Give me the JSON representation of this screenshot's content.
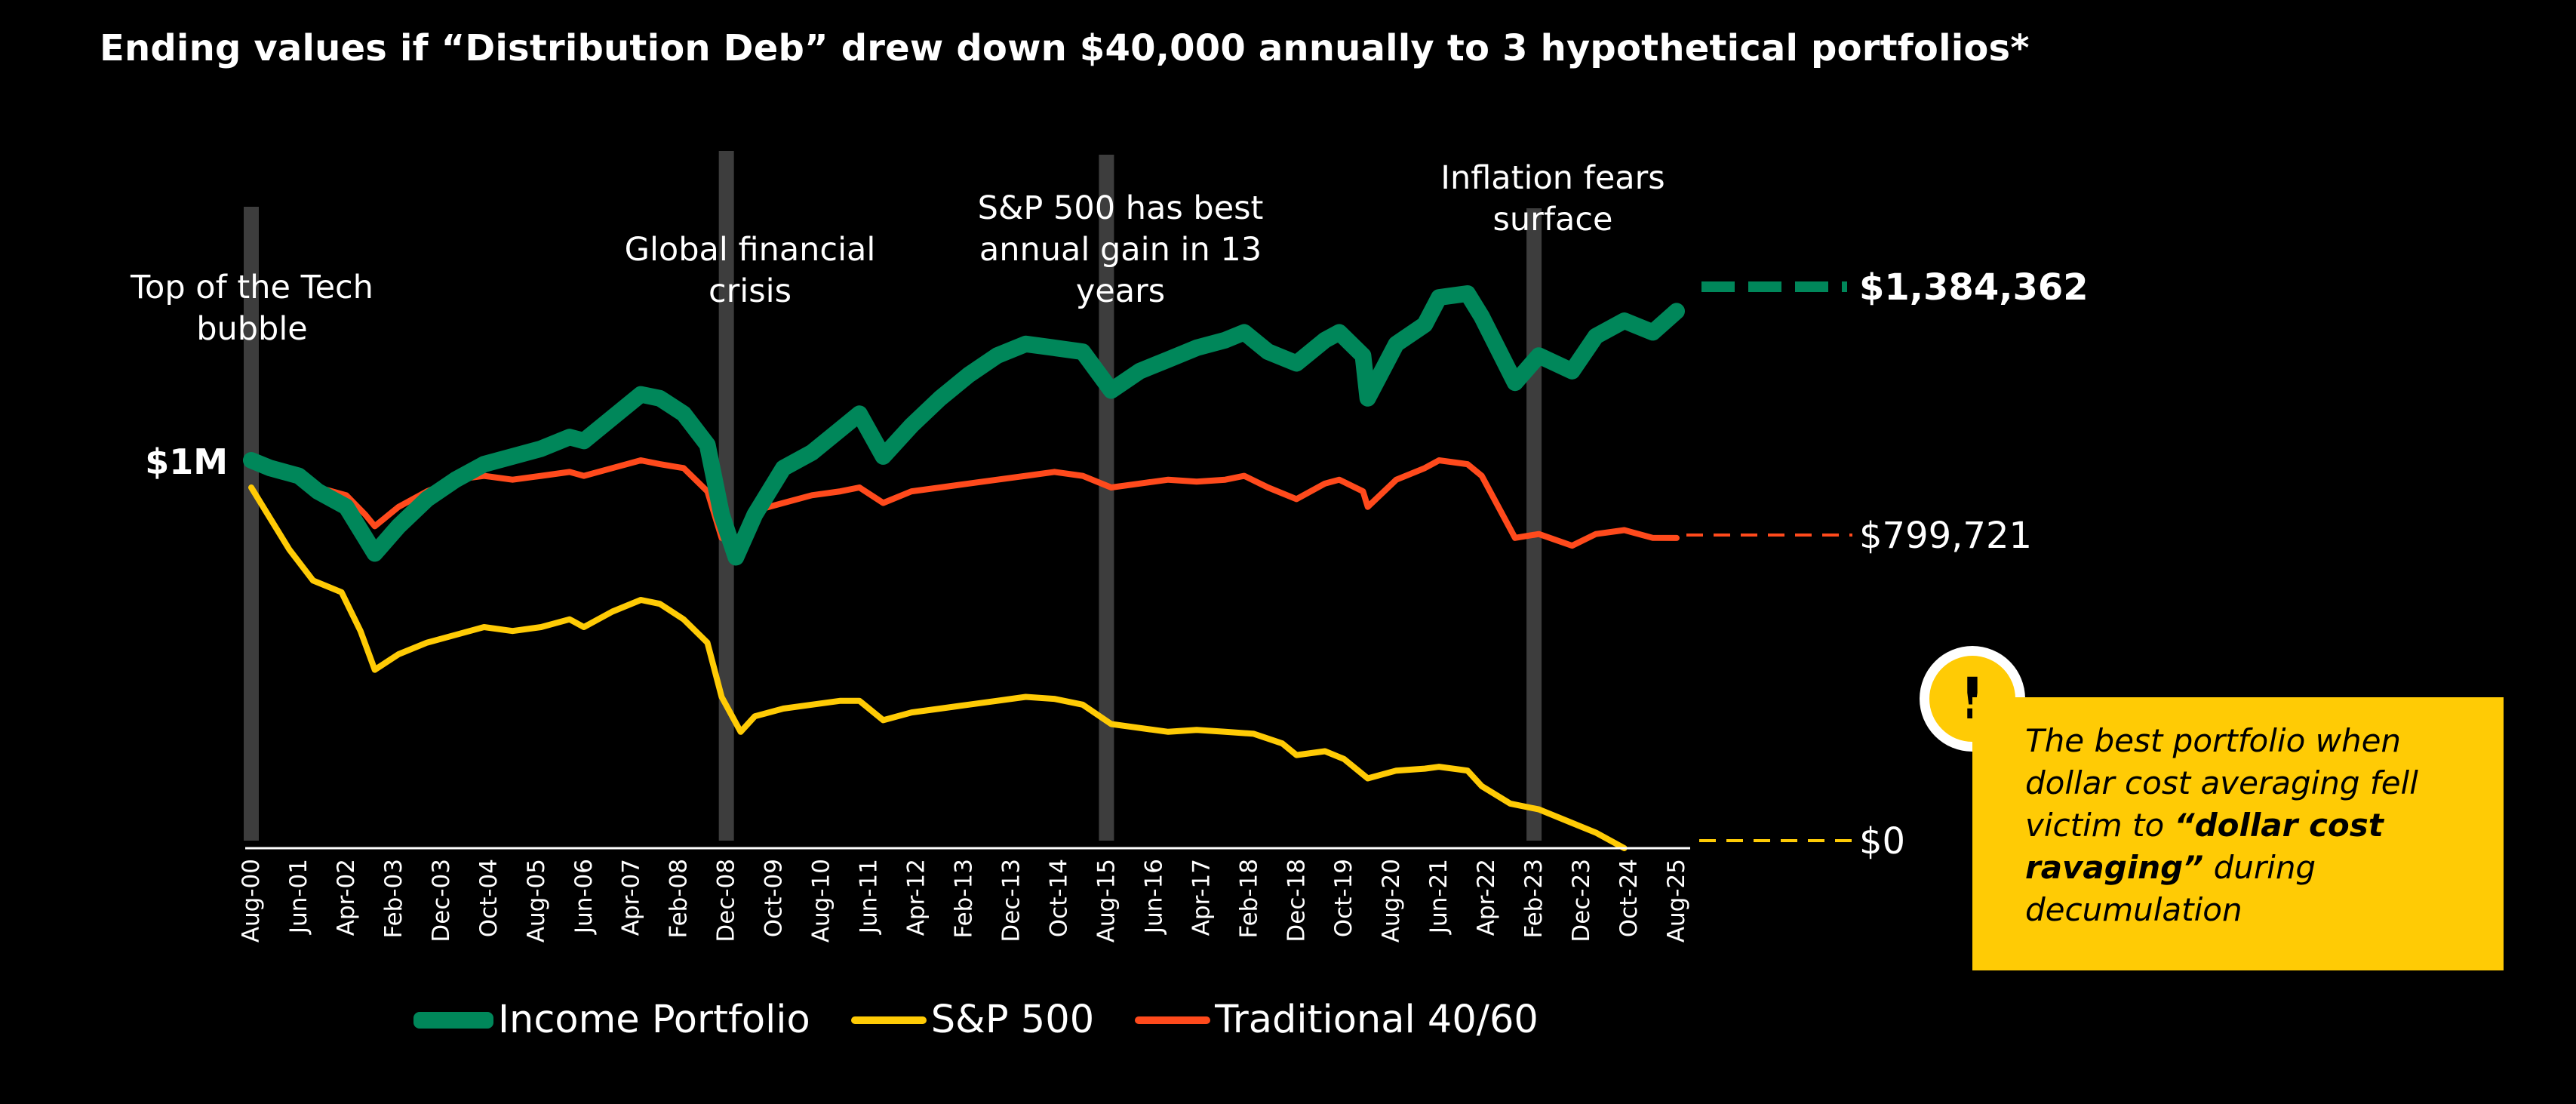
{
  "chart_data": {
    "type": "line",
    "title": "Ending values if “Distribution Deb” drew down $40,000 annually to 3 hypothetical portfolios*",
    "x_ticks": [
      "Aug-00",
      "Jun-01",
      "Apr-02",
      "Feb-03",
      "Dec-03",
      "Oct-04",
      "Aug-05",
      "Jun-06",
      "Apr-07",
      "Feb-08",
      "Dec-08",
      "Oct-09",
      "Aug-10",
      "Jun-11",
      "Apr-12",
      "Feb-13",
      "Dec-13",
      "Oct-14",
      "Aug-15",
      "Jun-16",
      "Apr-17",
      "Feb-18",
      "Dec-18",
      "Oct-19",
      "Aug-20",
      "Jun-21",
      "Apr-22",
      "Feb-23",
      "Dec-23",
      "Oct-24",
      "Aug-25"
    ],
    "y_label_1m": "$1M",
    "ylim": [
      0,
      1500000
    ],
    "series": [
      {
        "name": "Income Portfolio",
        "color": "#00875a",
        "end_label": "$1,384,362",
        "end_value": 1384362,
        "x": [
          "2000-08",
          "2000-12",
          "2001-06",
          "2001-10",
          "2002-04",
          "2002-08",
          "2002-10",
          "2003-03",
          "2003-09",
          "2004-03",
          "2004-09",
          "2005-03",
          "2005-09",
          "2006-03",
          "2006-06",
          "2006-12",
          "2007-06",
          "2007-10",
          "2008-03",
          "2008-08",
          "2008-11",
          "2009-02",
          "2009-06",
          "2009-12",
          "2010-06",
          "2010-12",
          "2011-04",
          "2011-09",
          "2012-03",
          "2012-09",
          "2013-03",
          "2013-09",
          "2014-03",
          "2014-09",
          "2015-03",
          "2015-09",
          "2016-03",
          "2016-09",
          "2017-03",
          "2017-09",
          "2018-01",
          "2018-06",
          "2018-12",
          "2019-06",
          "2019-09",
          "2020-02",
          "2020-03",
          "2020-09",
          "2021-03",
          "2021-06",
          "2021-12",
          "2022-03",
          "2022-10",
          "2023-03",
          "2023-10",
          "2024-03",
          "2024-09",
          "2025-03",
          "2025-08"
        ],
        "y": [
          1000000,
          980000,
          960000,
          920000,
          880000,
          800000,
          760000,
          830000,
          900000,
          950000,
          990000,
          1010000,
          1030000,
          1060000,
          1050000,
          1110000,
          1170000,
          1160000,
          1120000,
          1040000,
          860000,
          750000,
          860000,
          980000,
          1020000,
          1080000,
          1120000,
          1010000,
          1090000,
          1160000,
          1220000,
          1270000,
          1300000,
          1290000,
          1280000,
          1180000,
          1230000,
          1260000,
          1290000,
          1310000,
          1330000,
          1280000,
          1250000,
          1310000,
          1330000,
          1270000,
          1160000,
          1300000,
          1350000,
          1420000,
          1430000,
          1370000,
          1200000,
          1270000,
          1230000,
          1320000,
          1360000,
          1330000,
          1384362
        ]
      },
      {
        "name": "S&P 500",
        "color": "#ffcb05",
        "end_label": "$0",
        "end_value": 0,
        "x": [
          "2000-08",
          "2000-12",
          "2001-04",
          "2001-09",
          "2002-03",
          "2002-07",
          "2002-10",
          "2003-03",
          "2003-09",
          "2004-03",
          "2004-09",
          "2005-03",
          "2005-09",
          "2006-03",
          "2006-06",
          "2006-12",
          "2007-06",
          "2007-10",
          "2008-03",
          "2008-08",
          "2008-11",
          "2009-03",
          "2009-06",
          "2009-12",
          "2010-06",
          "2010-12",
          "2011-04",
          "2011-09",
          "2012-03",
          "2012-09",
          "2013-03",
          "2013-09",
          "2014-03",
          "2014-09",
          "2015-03",
          "2015-09",
          "2016-03",
          "2016-09",
          "2017-03",
          "2017-09",
          "2018-03",
          "2018-09",
          "2018-12",
          "2019-06",
          "2019-10",
          "2020-03",
          "2020-09",
          "2021-03",
          "2021-06",
          "2021-12",
          "2022-03",
          "2022-09",
          "2023-03",
          "2023-09",
          "2024-03",
          "2024-09"
        ],
        "y": [
          930000,
          850000,
          770000,
          690000,
          660000,
          560000,
          460000,
          500000,
          530000,
          550000,
          570000,
          560000,
          570000,
          590000,
          570000,
          610000,
          640000,
          630000,
          590000,
          530000,
          390000,
          300000,
          340000,
          360000,
          370000,
          380000,
          380000,
          330000,
          350000,
          360000,
          370000,
          380000,
          390000,
          385000,
          370000,
          320000,
          310000,
          300000,
          305000,
          300000,
          295000,
          270000,
          240000,
          250000,
          230000,
          180000,
          200000,
          205000,
          210000,
          200000,
          160000,
          115000,
          100000,
          70000,
          40000,
          0
        ]
      },
      {
        "name": "Traditional 40/60",
        "color": "#ff4a1c",
        "end_label": "$799,721",
        "end_value": 799721,
        "x": [
          "2000-08",
          "2000-12",
          "2001-06",
          "2001-10",
          "2002-04",
          "2002-08",
          "2002-10",
          "2003-03",
          "2003-09",
          "2004-03",
          "2004-09",
          "2005-03",
          "2005-09",
          "2006-03",
          "2006-06",
          "2006-12",
          "2007-06",
          "2007-10",
          "2008-03",
          "2008-08",
          "2008-11",
          "2009-02",
          "2009-06",
          "2009-12",
          "2010-06",
          "2010-12",
          "2011-04",
          "2011-09",
          "2012-03",
          "2012-09",
          "2013-03",
          "2013-09",
          "2014-03",
          "2014-09",
          "2015-03",
          "2015-09",
          "2016-03",
          "2016-09",
          "2017-03",
          "2017-09",
          "2018-01",
          "2018-06",
          "2018-12",
          "2019-06",
          "2019-09",
          "2020-02",
          "2020-03",
          "2020-09",
          "2021-03",
          "2021-06",
          "2021-12",
          "2022-03",
          "2022-10",
          "2023-03",
          "2023-10",
          "2024-03",
          "2024-09",
          "2025-03",
          "2025-08"
        ],
        "y": [
          1000000,
          980000,
          960000,
          930000,
          910000,
          860000,
          830000,
          880000,
          920000,
          950000,
          960000,
          950000,
          960000,
          970000,
          960000,
          980000,
          1000000,
          990000,
          980000,
          920000,
          800000,
          780000,
          870000,
          890000,
          910000,
          920000,
          930000,
          890000,
          920000,
          930000,
          940000,
          950000,
          960000,
          970000,
          960000,
          930000,
          940000,
          950000,
          945000,
          950000,
          960000,
          930000,
          900000,
          940000,
          950000,
          920000,
          880000,
          950000,
          980000,
          1000000,
          990000,
          960000,
          800000,
          810000,
          780000,
          810000,
          820000,
          800000,
          799721
        ]
      }
    ],
    "annotations": [
      {
        "date": "2000-08",
        "label": "Top of the Tech bubble"
      },
      {
        "date": "2008-12",
        "label": "Global financial crisis"
      },
      {
        "date": "2015-08",
        "label": "S&P 500 has best annual gain in 13 years"
      },
      {
        "date": "2023-02",
        "label": "Inflation fears surface"
      }
    ],
    "grid": false,
    "legend_position": "bottom"
  },
  "callout": {
    "badge": "!",
    "text_1": "The best portfolio when dollar cost averaging fell victim to ",
    "text_bold": "“dollar cost ravaging”",
    "text_2": " during decumulation",
    "color": "#ffcb05"
  }
}
